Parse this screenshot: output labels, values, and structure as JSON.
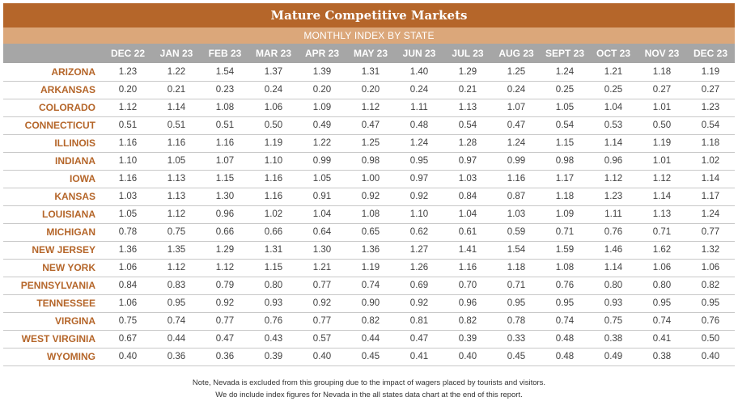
{
  "title": "Mature Competitive Markets",
  "subtitle": "MONTHLY INDEX BY STATE",
  "columns": [
    "DEC 22",
    "JAN 23",
    "FEB 23",
    "MAR 23",
    "APR 23",
    "MAY 23",
    "JUN 23",
    "JUL 23",
    "AUG 23",
    "SEPT 23",
    "OCT 23",
    "NOV 23",
    "DEC 23"
  ],
  "rows": [
    {
      "state": "ARIZONA",
      "values": [
        "1.23",
        "1.22",
        "1.54",
        "1.37",
        "1.39",
        "1.31",
        "1.40",
        "1.29",
        "1.25",
        "1.24",
        "1.21",
        "1.18",
        "1.19"
      ]
    },
    {
      "state": "ARKANSAS",
      "values": [
        "0.20",
        "0.21",
        "0.23",
        "0.24",
        "0.20",
        "0.20",
        "0.24",
        "0.21",
        "0.24",
        "0.25",
        "0.25",
        "0.27",
        "0.27"
      ]
    },
    {
      "state": "COLORADO",
      "values": [
        "1.12",
        "1.14",
        "1.08",
        "1.06",
        "1.09",
        "1.12",
        "1.11",
        "1.13",
        "1.07",
        "1.05",
        "1.04",
        "1.01",
        "1.23"
      ]
    },
    {
      "state": "CONNECTICUT",
      "values": [
        "0.51",
        "0.51",
        "0.51",
        "0.50",
        "0.49",
        "0.47",
        "0.48",
        "0.54",
        "0.47",
        "0.54",
        "0.53",
        "0.50",
        "0.54"
      ]
    },
    {
      "state": "ILLINOIS",
      "values": [
        "1.16",
        "1.16",
        "1.16",
        "1.19",
        "1.22",
        "1.25",
        "1.24",
        "1.28",
        "1.24",
        "1.15",
        "1.14",
        "1.19",
        "1.18"
      ]
    },
    {
      "state": "INDIANA",
      "values": [
        "1.10",
        "1.05",
        "1.07",
        "1.10",
        "0.99",
        "0.98",
        "0.95",
        "0.97",
        "0.99",
        "0.98",
        "0.96",
        "1.01",
        "1.02"
      ]
    },
    {
      "state": "IOWA",
      "values": [
        "1.16",
        "1.13",
        "1.15",
        "1.16",
        "1.05",
        "1.00",
        "0.97",
        "1.03",
        "1.16",
        "1.17",
        "1.12",
        "1.12",
        "1.14"
      ]
    },
    {
      "state": "KANSAS",
      "values": [
        "1.03",
        "1.13",
        "1.30",
        "1.16",
        "0.91",
        "0.92",
        "0.92",
        "0.84",
        "0.87",
        "1.18",
        "1.23",
        "1.14",
        "1.17"
      ]
    },
    {
      "state": "LOUISIANA",
      "values": [
        "1.05",
        "1.12",
        "0.96",
        "1.02",
        "1.04",
        "1.08",
        "1.10",
        "1.04",
        "1.03",
        "1.09",
        "1.11",
        "1.13",
        "1.24"
      ]
    },
    {
      "state": "MICHIGAN",
      "values": [
        "0.78",
        "0.75",
        "0.66",
        "0.66",
        "0.64",
        "0.65",
        "0.62",
        "0.61",
        "0.59",
        "0.71",
        "0.76",
        "0.71",
        "0.77"
      ]
    },
    {
      "state": "NEW JERSEY",
      "values": [
        "1.36",
        "1.35",
        "1.29",
        "1.31",
        "1.30",
        "1.36",
        "1.27",
        "1.41",
        "1.54",
        "1.59",
        "1.46",
        "1.62",
        "1.32"
      ]
    },
    {
      "state": "NEW YORK",
      "values": [
        "1.06",
        "1.12",
        "1.12",
        "1.15",
        "1.21",
        "1.19",
        "1.26",
        "1.16",
        "1.18",
        "1.08",
        "1.14",
        "1.06",
        "1.06"
      ]
    },
    {
      "state": "PENNSYLVANIA",
      "values": [
        "0.84",
        "0.83",
        "0.79",
        "0.80",
        "0.77",
        "0.74",
        "0.69",
        "0.70",
        "0.71",
        "0.76",
        "0.80",
        "0.80",
        "0.82"
      ]
    },
    {
      "state": "TENNESSEE",
      "values": [
        "1.06",
        "0.95",
        "0.92",
        "0.93",
        "0.92",
        "0.90",
        "0.92",
        "0.96",
        "0.95",
        "0.95",
        "0.93",
        "0.95",
        "0.95"
      ]
    },
    {
      "state": "VIRGINA",
      "values": [
        "0.75",
        "0.74",
        "0.77",
        "0.76",
        "0.77",
        "0.82",
        "0.81",
        "0.82",
        "0.78",
        "0.74",
        "0.75",
        "0.74",
        "0.76"
      ]
    },
    {
      "state": "WEST VIRGINIA",
      "values": [
        "0.67",
        "0.44",
        "0.47",
        "0.43",
        "0.57",
        "0.44",
        "0.47",
        "0.39",
        "0.33",
        "0.48",
        "0.38",
        "0.41",
        "0.50"
      ]
    },
    {
      "state": "WYOMING",
      "values": [
        "0.40",
        "0.36",
        "0.36",
        "0.39",
        "0.40",
        "0.45",
        "0.41",
        "0.40",
        "0.45",
        "0.48",
        "0.49",
        "0.38",
        "0.40"
      ]
    }
  ],
  "notes": [
    "Note, Nevada is excluded from this grouping due to the impact of wagers placed by tourists and visitors.",
    "We do include index figures for Nevada in the all states data chart at the end of this report."
  ],
  "colors": {
    "title_bg": "#b5662a",
    "subtitle_bg": "#dba77a",
    "header_bg": "#a6a6a6",
    "state_text": "#b5662a",
    "value_text": "#404040"
  }
}
